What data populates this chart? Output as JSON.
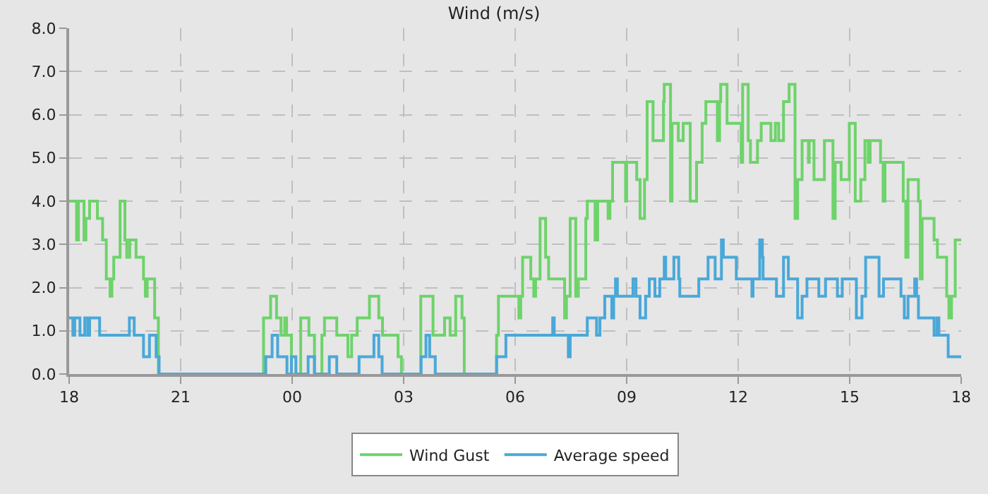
{
  "chart_data": {
    "type": "step",
    "title": "Wind (m/s)",
    "xlim": [
      18,
      42
    ],
    "xticks": [
      {
        "value": 18,
        "label": "18"
      },
      {
        "value": 21,
        "label": "21"
      },
      {
        "value": 24,
        "label": "00"
      },
      {
        "value": 27,
        "label": "03"
      },
      {
        "value": 30,
        "label": "06"
      },
      {
        "value": 33,
        "label": "09"
      },
      {
        "value": 36,
        "label": "12"
      },
      {
        "value": 39,
        "label": "15"
      },
      {
        "value": 42,
        "label": "18"
      }
    ],
    "ylim": [
      0,
      8
    ],
    "yticks": [
      {
        "value": 0,
        "label": "0.0"
      },
      {
        "value": 1,
        "label": "1.0"
      },
      {
        "value": 2,
        "label": "2.0"
      },
      {
        "value": 3,
        "label": "3.0"
      },
      {
        "value": 4,
        "label": "4.0"
      },
      {
        "value": 5,
        "label": "5.0"
      },
      {
        "value": 6,
        "label": "6.0"
      },
      {
        "value": 7,
        "label": "7.0"
      },
      {
        "value": 8,
        "label": "8.0"
      }
    ],
    "grid": true,
    "legend": "bottom",
    "series": [
      {
        "name": "Wind Gust",
        "color": "#6ed36b",
        "x": [
          18.0,
          18.2,
          18.25,
          18.4,
          18.45,
          18.55,
          18.76,
          18.9,
          19.0,
          19.1,
          19.15,
          19.2,
          19.37,
          19.5,
          19.55,
          19.63,
          19.8,
          20.0,
          20.05,
          20.1,
          20.3,
          20.4,
          23.23,
          23.42,
          23.58,
          23.7,
          23.8,
          23.85,
          23.98,
          24.23,
          24.45,
          24.6,
          24.8,
          24.87,
          25.2,
          25.5,
          25.6,
          25.75,
          26.08,
          26.33,
          26.43,
          26.85,
          26.94,
          27.46,
          27.79,
          28.1,
          28.25,
          28.4,
          28.57,
          28.63,
          29.5,
          29.55,
          30.1,
          30.15,
          30.2,
          30.42,
          30.5,
          30.55,
          30.67,
          30.82,
          30.9,
          31.33,
          31.38,
          31.48,
          31.63,
          31.7,
          31.9,
          31.94,
          32.15,
          32.22,
          32.5,
          32.55,
          32.62,
          32.97,
          33.0,
          33.27,
          33.36,
          33.48,
          33.55,
          33.71,
          33.99,
          34.01,
          34.18,
          34.22,
          34.39,
          34.52,
          34.71,
          34.88,
          35.03,
          35.13,
          35.44,
          35.5,
          35.53,
          35.7,
          36.08,
          36.12,
          36.27,
          36.33,
          36.52,
          36.62,
          36.88,
          37.0,
          37.09,
          37.22,
          37.37,
          37.53,
          37.6,
          37.72,
          37.89,
          37.91,
          38.04,
          38.32,
          38.55,
          38.61,
          38.77,
          38.99,
          39.15,
          39.3,
          39.41,
          39.5,
          39.55,
          39.83,
          39.9,
          39.95,
          40.44,
          40.51,
          40.57,
          40.85,
          40.9,
          40.95,
          41.27,
          41.36,
          41.61,
          41.67,
          41.74,
          41.84,
          42.0
        ],
        "values": [
          4.0,
          3.1,
          4.0,
          3.1,
          3.6,
          4.0,
          3.6,
          3.1,
          2.2,
          1.8,
          2.2,
          2.7,
          4.0,
          3.1,
          2.7,
          3.1,
          2.7,
          2.2,
          1.8,
          2.2,
          1.3,
          0,
          1.3,
          1.8,
          1.3,
          0.9,
          1.3,
          0.9,
          0,
          1.3,
          0.9,
          0,
          0.9,
          1.3,
          0.9,
          0.4,
          0.9,
          1.3,
          1.8,
          1.3,
          0.9,
          0.4,
          0,
          1.8,
          0.9,
          1.3,
          0.9,
          1.8,
          1.3,
          0,
          0.9,
          1.8,
          1.3,
          1.8,
          2.7,
          2.2,
          1.8,
          2.2,
          3.6,
          2.7,
          2.2,
          1.3,
          1.8,
          3.6,
          1.8,
          2.2,
          3.6,
          4.0,
          3.1,
          4.0,
          3.6,
          4.0,
          4.9,
          4.0,
          4.9,
          4.5,
          3.6,
          4.5,
          6.3,
          5.4,
          6.3,
          6.7,
          4.0,
          5.8,
          5.4,
          5.8,
          4.0,
          4.9,
          5.8,
          6.3,
          5.4,
          6.3,
          6.7,
          5.8,
          4.9,
          6.7,
          5.4,
          4.9,
          5.4,
          5.8,
          5.4,
          5.8,
          5.4,
          6.3,
          6.7,
          3.6,
          4.5,
          5.4,
          4.9,
          5.4,
          4.5,
          5.4,
          3.6,
          4.9,
          4.5,
          5.8,
          4.0,
          4.5,
          5.4,
          4.9,
          5.4,
          4.9,
          4.0,
          4.9,
          4.0,
          2.7,
          4.5,
          4.0,
          2.2,
          3.6,
          3.1,
          2.7,
          1.8,
          1.3,
          1.8,
          3.1,
          3.1
        ]
      },
      {
        "name": "Average speed",
        "color": "#4aa8d8",
        "x": [
          18.0,
          18.1,
          18.15,
          18.29,
          18.42,
          18.5,
          18.55,
          18.82,
          19.62,
          19.75,
          20.0,
          20.16,
          20.34,
          20.42,
          23.29,
          23.46,
          23.61,
          23.86,
          23.98,
          24.1,
          24.43,
          24.6,
          25.0,
          25.2,
          25.8,
          26.2,
          26.33,
          26.42,
          27.47,
          27.6,
          27.7,
          27.85,
          29.5,
          29.75,
          31.01,
          31.05,
          31.43,
          31.48,
          31.94,
          32.19,
          32.28,
          32.41,
          32.6,
          32.65,
          32.7,
          32.75,
          33.17,
          33.25,
          33.36,
          33.51,
          33.61,
          33.76,
          33.89,
          34.01,
          34.05,
          34.27,
          34.4,
          34.43,
          34.94,
          35.19,
          35.38,
          35.55,
          35.6,
          35.95,
          36.37,
          36.4,
          36.58,
          36.65,
          36.67,
          37.03,
          37.22,
          37.35,
          37.6,
          37.72,
          37.85,
          38.17,
          38.35,
          38.67,
          38.8,
          39.18,
          39.33,
          39.43,
          39.79,
          39.91,
          40.38,
          40.47,
          40.57,
          40.75,
          40.8,
          40.85,
          41.27,
          41.35,
          41.4,
          41.65,
          42.0
        ],
        "values": [
          1.3,
          0.9,
          1.3,
          0.9,
          1.3,
          0.9,
          1.3,
          0.9,
          1.3,
          0.9,
          0.4,
          0.9,
          0.4,
          0,
          0.4,
          0.9,
          0.4,
          0,
          0.4,
          0,
          0.4,
          0,
          0.4,
          0,
          0.4,
          0.9,
          0.4,
          0,
          0.4,
          0.9,
          0.4,
          0,
          0.4,
          0.9,
          1.3,
          0.9,
          0.4,
          0.9,
          1.3,
          0.9,
          1.3,
          1.8,
          1.3,
          1.8,
          2.2,
          1.8,
          2.2,
          1.8,
          1.3,
          1.8,
          2.2,
          1.8,
          2.2,
          2.7,
          2.2,
          2.7,
          2.2,
          1.8,
          2.2,
          2.7,
          2.2,
          3.1,
          2.7,
          2.2,
          1.8,
          2.2,
          3.1,
          2.7,
          2.2,
          1.8,
          2.7,
          2.2,
          1.3,
          1.8,
          2.2,
          1.8,
          2.2,
          1.8,
          2.2,
          1.3,
          1.8,
          2.7,
          1.8,
          2.2,
          1.8,
          1.3,
          1.8,
          2.2,
          1.8,
          1.3,
          0.9,
          1.3,
          0.9,
          0.4,
          0.4
        ]
      }
    ]
  }
}
